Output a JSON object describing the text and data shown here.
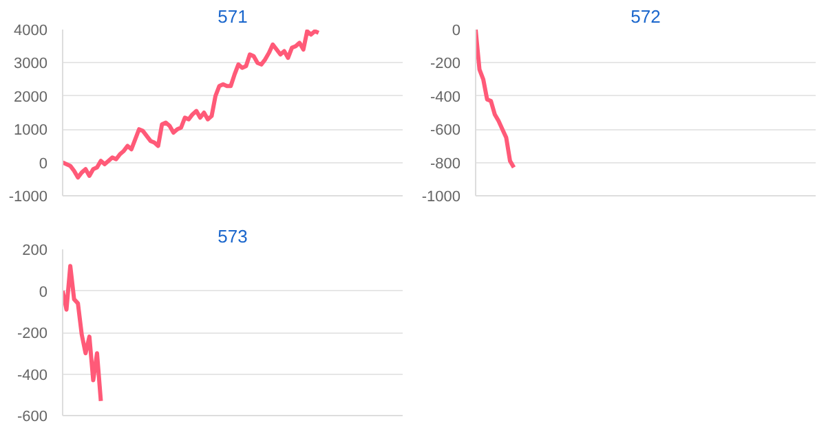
{
  "chart_data": [
    {
      "type": "line",
      "title": "571",
      "tick_labels": "y",
      "grid": "y",
      "ylim": [
        -1000,
        4000
      ],
      "yticks": [
        -1000,
        0,
        1000,
        2000,
        3000,
        4000
      ],
      "categories": [
        null,
        null,
        null,
        null,
        null,
        null,
        null,
        null,
        null,
        null,
        null,
        null,
        null,
        null,
        null,
        null,
        null,
        null,
        null,
        null,
        null,
        null,
        null,
        null,
        null,
        null,
        null,
        null,
        null,
        null,
        null,
        null,
        null,
        null,
        null,
        null,
        null,
        null,
        null,
        null,
        null,
        null,
        null,
        null,
        null,
        null,
        null,
        null,
        null,
        null,
        null,
        null,
        null,
        null,
        null,
        null,
        null,
        null,
        null,
        null,
        null,
        null,
        null,
        null,
        null,
        null,
        null,
        null,
        null,
        null,
        null,
        null,
        null,
        null,
        null,
        null,
        null,
        null,
        null,
        null,
        null,
        null,
        null,
        null,
        null,
        null,
        null,
        null,
        null,
        null
      ],
      "series": [
        {
          "color": "#ff5a78",
          "values": [
            0,
            -50,
            -100,
            -250,
            -450,
            -300,
            -200,
            -400,
            -200,
            -150,
            50,
            -50,
            50,
            150,
            100,
            250,
            350,
            500,
            400,
            700,
            1000,
            950,
            800,
            650,
            600,
            500,
            1150,
            1200,
            1100,
            900,
            1000,
            1050,
            1350,
            1300,
            1450,
            1550,
            1350,
            1500,
            1300,
            1400,
            2000,
            2300,
            2350,
            2300,
            2300,
            2650,
            2950,
            2850,
            2900,
            3250,
            3200,
            3000,
            2950,
            3100,
            3300,
            3550,
            3400,
            3250,
            3350,
            3150,
            3450,
            3500,
            3600,
            3400,
            3950,
            3850,
            3950,
            3900,
            null,
            null,
            null,
            null,
            null,
            null,
            null,
            null,
            null,
            null,
            null,
            null,
            null,
            null,
            null,
            null,
            null,
            null,
            null,
            null,
            null,
            null
          ]
        }
      ]
    },
    {
      "type": "line",
      "title": "572",
      "tick_labels": "y",
      "grid": "y",
      "ylim": [
        -1000,
        0
      ],
      "yticks": [
        -1000,
        -800,
        -600,
        -400,
        -200,
        0
      ],
      "categories": [
        null,
        null,
        null,
        null,
        null,
        null,
        null,
        null,
        null,
        null,
        null,
        null,
        null,
        null,
        null,
        null,
        null,
        null,
        null,
        null,
        null,
        null,
        null,
        null,
        null,
        null,
        null,
        null,
        null,
        null,
        null,
        null,
        null,
        null,
        null,
        null,
        null,
        null,
        null,
        null,
        null,
        null,
        null,
        null,
        null,
        null,
        null,
        null,
        null,
        null,
        null,
        null,
        null,
        null,
        null,
        null,
        null,
        null,
        null,
        null,
        null,
        null,
        null,
        null,
        null,
        null,
        null,
        null,
        null,
        null,
        null,
        null,
        null,
        null,
        null,
        null,
        null,
        null,
        null,
        null,
        null,
        null,
        null,
        null,
        null,
        null,
        null,
        null,
        null,
        null
      ],
      "series": [
        {
          "color": "#ff5a78",
          "values": [
            0,
            -240,
            -300,
            -420,
            -430,
            -510,
            -550,
            -600,
            -650,
            -790,
            -830,
            null,
            null,
            null,
            null,
            null,
            null,
            null,
            null,
            null,
            null,
            null,
            null,
            null,
            null,
            null,
            null,
            null,
            null,
            null,
            null,
            null,
            null,
            null,
            null,
            null,
            null,
            null,
            null,
            null,
            null,
            null,
            null,
            null,
            null,
            null,
            null,
            null,
            null,
            null,
            null,
            null,
            null,
            null,
            null,
            null,
            null,
            null,
            null,
            null,
            null,
            null,
            null,
            null,
            null,
            null,
            null,
            null,
            null,
            null,
            null,
            null,
            null,
            null,
            null,
            null,
            null,
            null,
            null,
            null,
            null,
            null,
            null,
            null,
            null,
            null,
            null,
            null,
            null,
            null
          ]
        }
      ]
    },
    {
      "type": "line",
      "title": "573",
      "tick_labels": "y",
      "grid": "y",
      "ylim": [
        -600,
        200
      ],
      "yticks": [
        -600,
        -400,
        -200,
        0,
        200
      ],
      "categories": [
        null,
        null,
        null,
        null,
        null,
        null,
        null,
        null,
        null,
        null,
        null,
        null,
        null,
        null,
        null,
        null,
        null,
        null,
        null,
        null,
        null,
        null,
        null,
        null,
        null,
        null,
        null,
        null,
        null,
        null,
        null,
        null,
        null,
        null,
        null,
        null,
        null,
        null,
        null,
        null,
        null,
        null,
        null,
        null,
        null,
        null,
        null,
        null,
        null,
        null,
        null,
        null,
        null,
        null,
        null,
        null,
        null,
        null,
        null,
        null,
        null,
        null,
        null,
        null,
        null,
        null,
        null,
        null,
        null,
        null,
        null,
        null,
        null,
        null,
        null,
        null,
        null,
        null,
        null,
        null,
        null,
        null,
        null,
        null,
        null,
        null,
        null,
        null,
        null,
        null
      ],
      "series": [
        {
          "color": "#ff5a78",
          "values": [
            0,
            -90,
            120,
            -40,
            -60,
            -210,
            -300,
            -220,
            -430,
            -300,
            -530,
            null,
            null,
            null,
            null,
            null,
            null,
            null,
            null,
            null,
            null,
            null,
            null,
            null,
            null,
            null,
            null,
            null,
            null,
            null,
            null,
            null,
            null,
            null,
            null,
            null,
            null,
            null,
            null,
            null,
            null,
            null,
            null,
            null,
            null,
            null,
            null,
            null,
            null,
            null,
            null,
            null,
            null,
            null,
            null,
            null,
            null,
            null,
            null,
            null,
            null,
            null,
            null,
            null,
            null,
            null,
            null,
            null,
            null,
            null,
            null,
            null,
            null,
            null,
            null,
            null,
            null,
            null,
            null,
            null,
            null,
            null,
            null,
            null,
            null,
            null,
            null,
            null,
            null,
            null
          ]
        }
      ]
    }
  ]
}
